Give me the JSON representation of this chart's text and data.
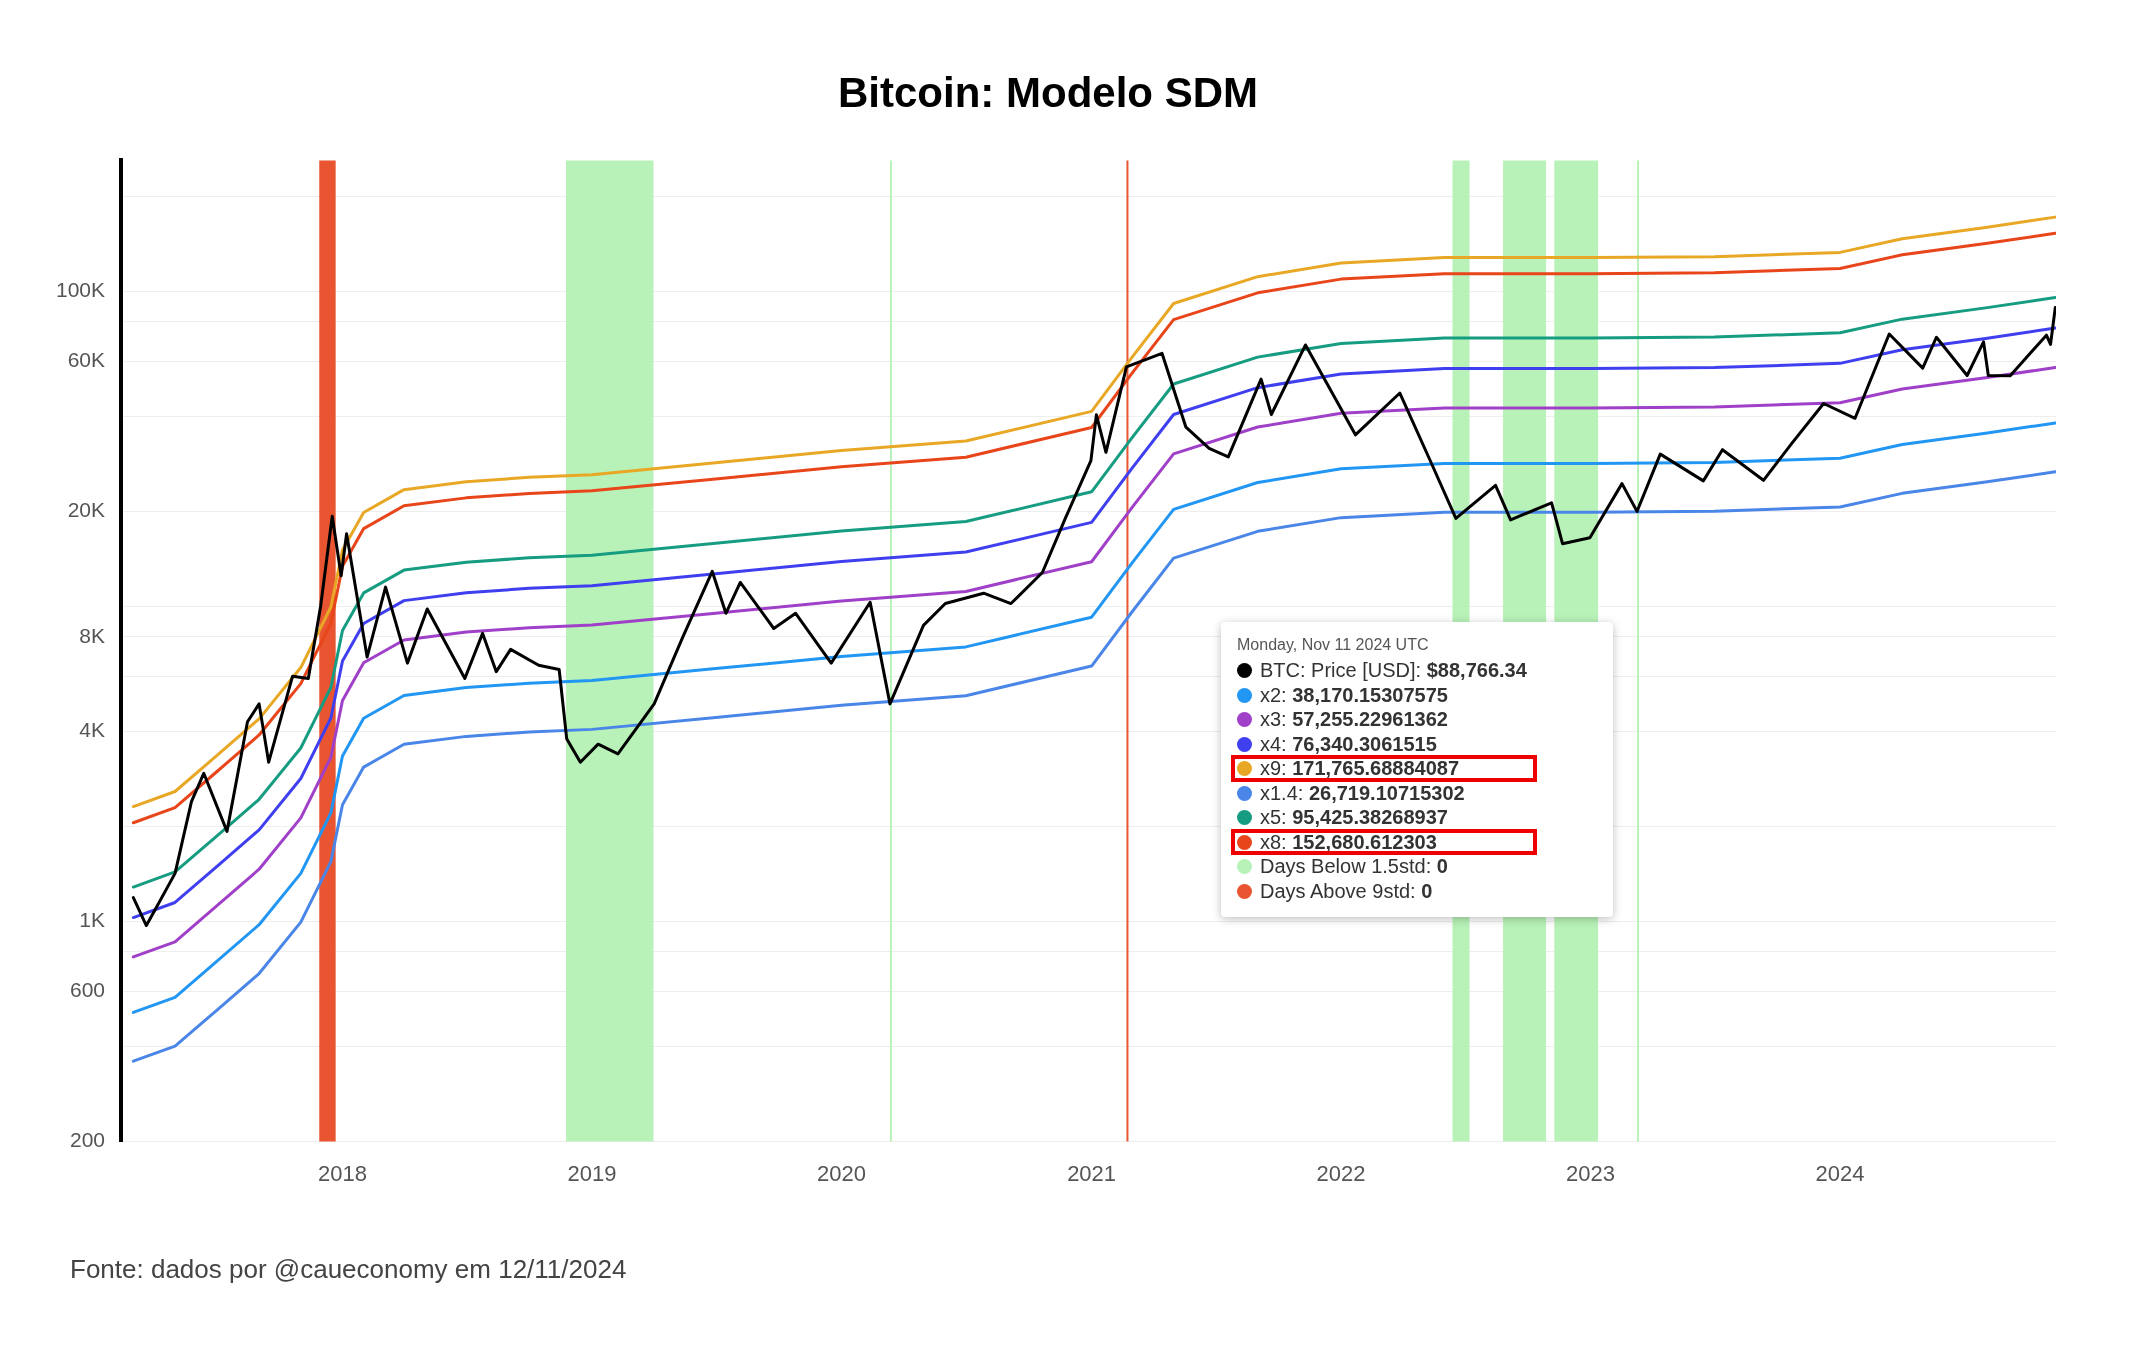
{
  "chart_data": {
    "type": "line",
    "title": "Bitcoin: Modelo SDM",
    "x": [
      "2017-03-01",
      "2017-05-01",
      "2017-07-01",
      "2017-09-01",
      "2017-11-01",
      "2017-12-15",
      "2018-01-01",
      "2018-02-01",
      "2018-04-01",
      "2018-07-01",
      "2018-10-01",
      "2019-01-01",
      "2019-07-01",
      "2020-01-01",
      "2020-07-01",
      "2021-01-01",
      "2021-03-01",
      "2021-05-01",
      "2021-09-01",
      "2022-01-01",
      "2022-06-01",
      "2023-01-01",
      "2023-07-01",
      "2024-01-01",
      "2024-04-01",
      "2024-08-01",
      "2024-11-11"
    ],
    "series": [
      {
        "color": "#000000",
        "x": [
          "2017-03-01",
          "2017-03-20",
          "2017-04-01",
          "2017-05-01",
          "2017-05-25",
          "2017-06-12",
          "2017-07-16",
          "2017-08-15",
          "2017-09-01",
          "2017-09-15",
          "2017-10-20",
          "2017-11-12",
          "2017-11-30",
          "2017-12-17",
          "2017-12-30",
          "2018-01-07",
          "2018-02-06",
          "2018-03-05",
          "2018-04-06",
          "2018-05-05",
          "2018-06-29",
          "2018-07-25",
          "2018-08-14",
          "2018-09-04",
          "2018-10-15",
          "2018-11-14",
          "2018-11-25",
          "2018-12-15",
          "2019-01-10",
          "2019-02-08",
          "2019-04-02",
          "2019-05-14",
          "2019-06-26",
          "2019-07-16",
          "2019-08-06",
          "2019-09-24",
          "2019-10-26",
          "2019-12-17",
          "2020-02-12",
          "2020-03-12",
          "2020-04-30",
          "2020-06-01",
          "2020-07-27",
          "2020-09-05",
          "2020-10-21",
          "2020-11-24",
          "2020-12-31",
          "2021-01-08",
          "2021-01-22",
          "2021-02-21",
          "2021-04-14",
          "2021-05-19",
          "2021-06-22",
          "2021-07-20",
          "2021-09-06",
          "2021-09-21",
          "2021-11-10",
          "2022-01-22",
          "2022-03-28",
          "2022-05-12",
          "2022-06-18",
          "2022-08-15",
          "2022-09-06",
          "2022-11-05",
          "2022-11-21",
          "2022-12-31",
          "2023-02-16",
          "2023-03-10",
          "2023-04-13",
          "2023-06-15",
          "2023-07-13",
          "2023-09-11",
          "2023-10-23",
          "2023-12-08",
          "2024-01-23",
          "2024-03-13",
          "2024-05-01",
          "2024-05-21",
          "2024-07-05",
          "2024-07-29",
          "2024-08-05",
          "2024-09-06",
          "2024-10-29",
          "2024-11-04",
          "2024-11-11"
        ],
        "values": [
          1190,
          970,
          1080,
          1420,
          2400,
          2950,
          1930,
          4300,
          4900,
          3200,
          6000,
          5900,
          10000,
          19300,
          12500,
          17000,
          6900,
          11500,
          6600,
          9800,
          5900,
          8200,
          6200,
          7300,
          6500,
          6300,
          3800,
          3200,
          3650,
          3400,
          4900,
          8000,
          12900,
          9500,
          11900,
          8500,
          9500,
          6600,
          10300,
          4900,
          8700,
          10200,
          11000,
          10200,
          12800,
          19100,
          29000,
          40500,
          30800,
          57500,
          63500,
          37000,
          31700,
          29800,
          52600,
          40600,
          67500,
          35000,
          47500,
          28800,
          19000,
          24200,
          18800,
          21300,
          15800,
          16500,
          24500,
          20000,
          30400,
          25000,
          31400,
          25100,
          33000,
          44000,
          39500,
          73100,
          57000,
          71400,
          54000,
          69000,
          54000,
          53900,
          72500,
          67800,
          88766.34
        ]
      },
      {
        "color": "#2196f3",
        "values": [
          514,
          574,
          746,
          976,
          1420,
          2210,
          3350,
          4410,
          5210,
          5520,
          5700,
          5810,
          6340,
          6930,
          7430,
          9230,
          13700,
          20300,
          24700,
          27300,
          28400,
          28400,
          28600,
          29500,
          32600,
          35400,
          38170.15307575
        ]
      },
      {
        "color": "#a040c8",
        "values": [
          771,
          861,
          1119,
          1464,
          2130,
          3315,
          5025,
          6615,
          7815,
          8280,
          8550,
          8715,
          9510,
          10395,
          11145,
          13845,
          20550,
          30450,
          37050,
          40950,
          42600,
          42600,
          42900,
          44250,
          48900,
          53100,
          57255.22961362
        ]
      },
      {
        "color": "#3f3ff0",
        "values": [
          1028,
          1148,
          1492,
          1952,
          2840,
          4420,
          6700,
          8820,
          10420,
          11040,
          11400,
          11620,
          12680,
          13860,
          14860,
          18460,
          27400,
          40600,
          49400,
          54600,
          56800,
          56800,
          57200,
          59000,
          65200,
          70800,
          76340.3061515
        ]
      },
      {
        "color": "#e8a825",
        "values": [
          2313,
          2583,
          3357,
          4392,
          6390,
          9945,
          15075,
          19845,
          23445,
          24840,
          25650,
          26145,
          28530,
          31185,
          33435,
          41535,
          61650,
          91350,
          111150,
          122850,
          127800,
          127800,
          128700,
          132750,
          146700,
          159300,
          171765.68884087
        ]
      },
      {
        "color": "#4a86e8",
        "values": [
          360,
          402,
          522,
          683,
          994,
          1547,
          2345,
          3087,
          3647,
          3864,
          3990,
          4067,
          4438,
          4851,
          5201,
          6461,
          9590,
          14210,
          17290,
          19110,
          19880,
          19880,
          20020,
          20650,
          22820,
          24780,
          26719.10715302
        ]
      },
      {
        "color": "#169c80",
        "values": [
          1285,
          1435,
          1865,
          2440,
          3550,
          5525,
          8375,
          11025,
          13025,
          13800,
          14250,
          14525,
          15850,
          17325,
          18575,
          23075,
          34250,
          50750,
          61750,
          68250,
          71000,
          71000,
          71500,
          73750,
          81500,
          88500,
          95425.38268937
        ]
      },
      {
        "color": "#e8451a",
        "values": [
          2056,
          2296,
          2984,
          3904,
          5680,
          8840,
          13400,
          17640,
          20840,
          22080,
          22800,
          23240,
          25360,
          27720,
          29720,
          36920,
          54800,
          81200,
          98800,
          109200,
          113600,
          113600,
          114400,
          118000,
          130400,
          141600,
          152680.612303
        ]
      }
    ],
    "bands": [
      {
        "axis": "x",
        "from": "2018-11-24",
        "to": "2019-04-01",
        "color": "#b8f2b8"
      },
      {
        "axis": "x",
        "from": "2020-03-12",
        "to": "2020-03-14",
        "color": "#b8f2b8"
      },
      {
        "axis": "x",
        "from": "2022-06-13",
        "to": "2022-07-08",
        "color": "#b8f2b8"
      },
      {
        "axis": "x",
        "from": "2022-08-26",
        "to": "2022-10-28",
        "color": "#b8f2b8"
      },
      {
        "axis": "x",
        "from": "2022-11-09",
        "to": "2023-01-12",
        "color": "#b8f2b8"
      },
      {
        "axis": "x",
        "from": "2023-03-10",
        "to": "2023-03-12",
        "color": "#b8f2b8"
      },
      {
        "axis": "x",
        "from": "2017-11-28",
        "to": "2017-12-22",
        "color": "#e85530"
      },
      {
        "axis": "x",
        "from": "2021-02-21",
        "to": "2021-02-23",
        "color": "#e85530"
      }
    ],
    "annotations": [
      "Monday, Nov 11 2024 UTC",
      "BTC: Price [USD]: $88,766.34",
      "x2: 38,170.15307575",
      "x3: 57,255.22961362",
      "x4: 76,340.3061515",
      "x9: 171,765.68884087",
      "x1.4: 26,719.10715302",
      "x5: 95,425.38268937",
      "x8: 152,680.612303",
      "Days Below 1.5std: 0",
      "Days Above 9std: 0",
      "Fonte: dados por @caueconomy em 12/11/2024"
    ],
    "xlim": [
      "2017-02-11",
      "2024-11-12"
    ],
    "xticks": [
      "2018",
      "2019",
      "2020",
      "2021",
      "2022",
      "2023",
      "2024"
    ],
    "ylim": [
      200,
      260000
    ],
    "yticks": [
      {
        "value": 200,
        "label": "200"
      },
      {
        "value": 400,
        "label": null
      },
      {
        "value": 600,
        "label": "600"
      },
      {
        "value": 800,
        "label": null
      },
      {
        "value": 1000,
        "label": "1K"
      },
      {
        "value": 2000,
        "label": null
      },
      {
        "value": 4000,
        "label": "4K"
      },
      {
        "value": 6000,
        "label": null
      },
      {
        "value": 8000,
        "label": "8K"
      },
      {
        "value": 10000,
        "label": null
      },
      {
        "value": 20000,
        "label": "20K"
      },
      {
        "value": 40000,
        "label": null
      },
      {
        "value": 60000,
        "label": "60K"
      },
      {
        "value": 80000,
        "label": null
      },
      {
        "value": 100000,
        "label": "100K"
      },
      {
        "value": 200000,
        "label": null
      }
    ],
    "log": "y",
    "grid": "y",
    "legend": false,
    "marker": "none",
    "line_style": "solid"
  }
}
